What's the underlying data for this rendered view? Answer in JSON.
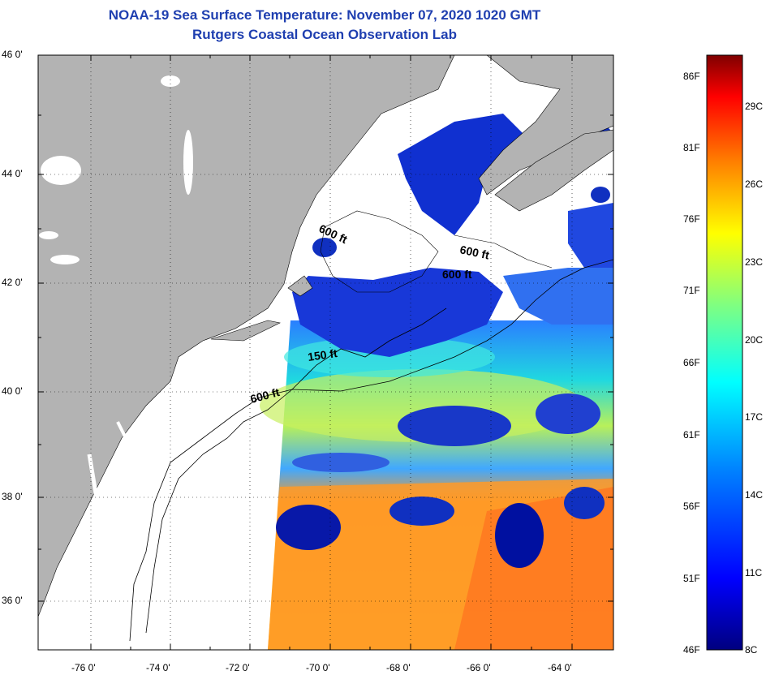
{
  "header": {
    "title_line1": "NOAA-19 Sea Surface Temperature:  November 07, 2020 1020 GMT",
    "title_line2": "Rutgers Coastal Ocean Observation Lab"
  },
  "map": {
    "lat_labels": [
      "46 0'",
      "44 0'",
      "42 0'",
      "40 0'",
      "38 0'",
      "36 0'"
    ],
    "lon_labels": [
      "-76 0'",
      "-74 0'",
      "-72 0'",
      "-70 0'",
      "-68 0'",
      "-66 0'",
      "-64 0'"
    ],
    "contour_labels": [
      "600 ft",
      "600 ft",
      "600 ft",
      "150 ft",
      "600 ft"
    ],
    "colors": {
      "land": "#b3b3b3",
      "ocean_no_data": "#ffffff",
      "contour": "#000000"
    }
  },
  "colorbar": {
    "fahrenheit_labels": [
      "86F",
      "81F",
      "76F",
      "71F",
      "66F",
      "61F",
      "56F",
      "51F",
      "46F"
    ],
    "celsius_labels": [
      "29C",
      "26C",
      "23C",
      "20C",
      "17C",
      "14C",
      "11C",
      "8C"
    ],
    "stops": [
      "#00007f",
      "#0000ff",
      "#0080ff",
      "#00ffff",
      "#80ff80",
      "#ffff00",
      "#ff8000",
      "#ff0000",
      "#7f0000"
    ]
  }
}
